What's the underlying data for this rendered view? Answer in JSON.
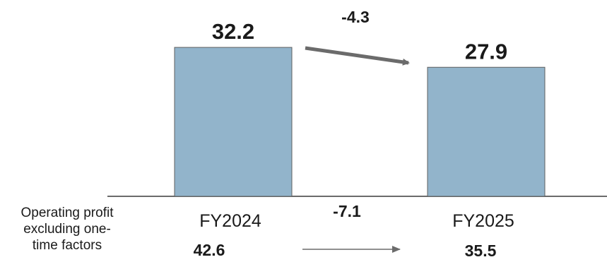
{
  "chart_data": {
    "type": "bar",
    "categories": [
      "FY2024",
      "FY2025"
    ],
    "values": [
      32.2,
      27.9
    ],
    "value_labels": [
      "32.2",
      "27.9"
    ],
    "change_label": "-4.3",
    "ylim": [
      0,
      40
    ],
    "grid": false,
    "bar_color": "#92b4cb",
    "bar_edge_color": "#5f5f5f",
    "arrow_color": "#6b6b6b",
    "secondary": {
      "label_lines": [
        "Operating profit",
        "excluding one-",
        "time factors"
      ],
      "values": [
        42.6,
        35.5
      ],
      "value_labels": [
        "42.6",
        "35.5"
      ],
      "change_label": "-7.1"
    }
  }
}
